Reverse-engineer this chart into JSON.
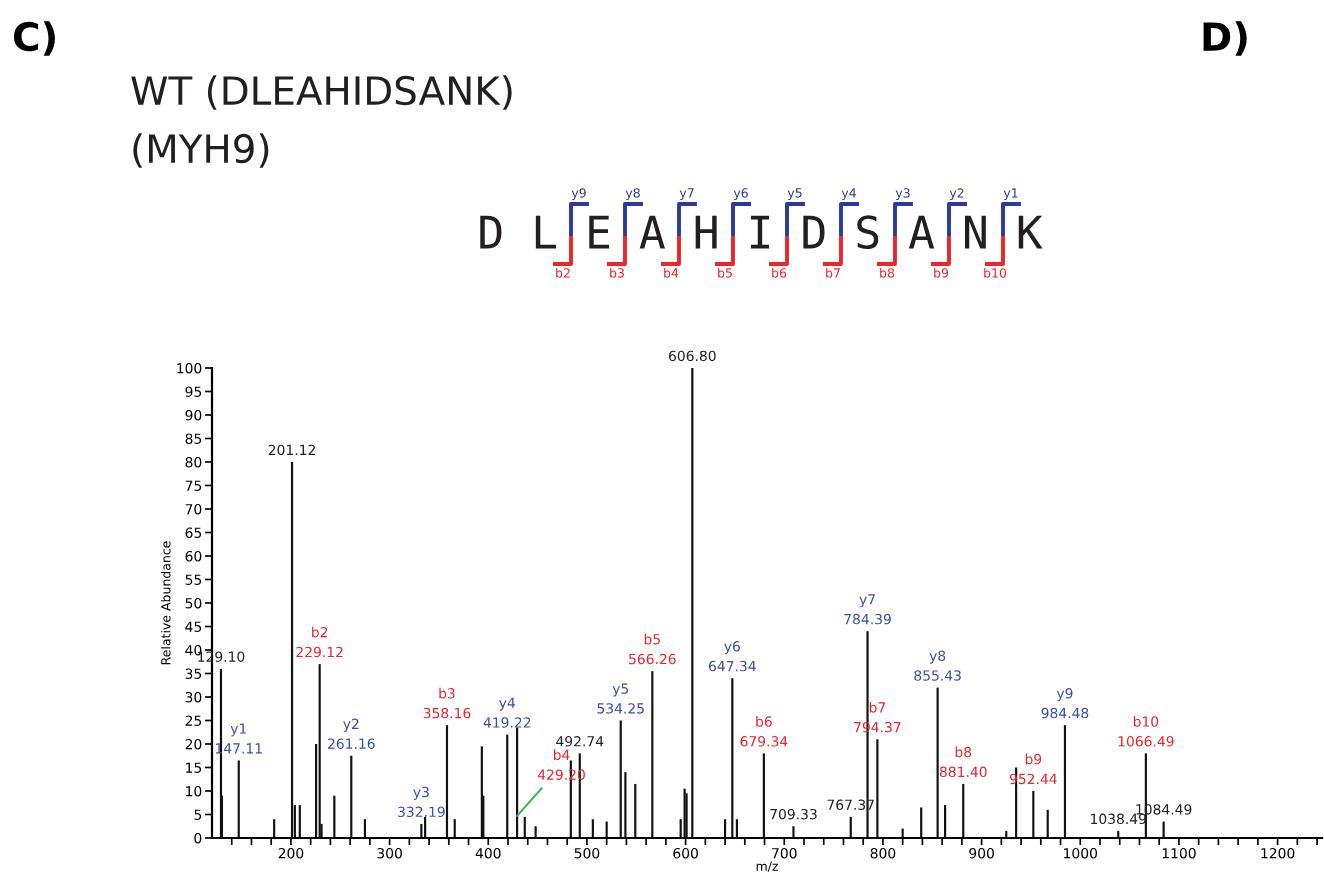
{
  "chart_data": {
    "type": "bar",
    "title": "WT (DLEAHIDSANK)",
    "subtitle": "(MYH9)",
    "xlabel": "m/z",
    "ylabel": "Relative Abundance",
    "x": [
      129.1,
      130.1,
      147.11,
      183,
      201.12,
      204,
      209,
      225.5,
      229.12,
      231,
      244,
      261.16,
      275,
      332.19,
      336,
      358.16,
      366,
      393.5,
      395,
      419.22,
      429.2,
      437,
      448,
      483.7,
      492.74,
      506,
      520,
      534.25,
      539,
      549,
      566.26,
      595,
      599,
      601,
      606.8,
      640,
      647.34,
      652,
      679.34,
      709.33,
      767.37,
      784.39,
      794.37,
      820,
      838.8,
      855.43,
      863,
      881.4,
      925,
      935,
      952.44,
      967,
      984.48,
      1038.49,
      1066.49,
      1084.49
    ],
    "series": [
      {
        "color": "#111111",
        "values": [
          36,
          9,
          16.5,
          4,
          80,
          7,
          7,
          20,
          37,
          3,
          9,
          17.5,
          4,
          3,
          4.5,
          24,
          4,
          19.5,
          9,
          22,
          23.5,
          4.5,
          2.5,
          16.5,
          18,
          4,
          3.5,
          25,
          14,
          11.5,
          35.5,
          4,
          10.5,
          9.5,
          100,
          4,
          34,
          4,
          18,
          2.5,
          4.5,
          44,
          21,
          2,
          6.5,
          32,
          7,
          11.5,
          1.5,
          15,
          10,
          6,
          24,
          1.5,
          18,
          3.5
        ]
      }
    ],
    "xlim": [
      120,
      1245
    ],
    "ylim": [
      0,
      100
    ],
    "xticks": [
      {
        "value": 140,
        "label": null
      },
      {
        "value": 160,
        "label": null
      },
      {
        "value": 180,
        "label": null
      },
      200,
      {
        "value": 220,
        "label": null
      },
      {
        "value": 240,
        "label": null
      },
      {
        "value": 260,
        "label": null
      },
      {
        "value": 280,
        "label": null
      },
      300,
      {
        "value": 320,
        "label": null
      },
      {
        "value": 340,
        "label": null
      },
      {
        "value": 360,
        "label": null
      },
      {
        "value": 380,
        "label": null
      },
      400,
      {
        "value": 420,
        "label": null
      },
      {
        "value": 440,
        "label": null
      },
      {
        "value": 460,
        "label": null
      },
      {
        "value": 480,
        "label": null
      },
      500,
      {
        "value": 520,
        "label": null
      },
      {
        "value": 540,
        "label": null
      },
      {
        "value": 560,
        "label": null
      },
      {
        "value": 580,
        "label": null
      },
      600,
      {
        "value": 620,
        "label": null
      },
      {
        "value": 640,
        "label": null
      },
      {
        "value": 660,
        "label": null
      },
      {
        "value": 680,
        "label": null
      },
      700,
      {
        "value": 720,
        "label": null
      },
      {
        "value": 740,
        "label": null
      },
      {
        "value": 760,
        "label": null
      },
      {
        "value": 780,
        "label": null
      },
      800,
      {
        "value": 820,
        "label": null
      },
      {
        "value": 840,
        "label": null
      },
      {
        "value": 860,
        "label": null
      },
      {
        "value": 880,
        "label": null
      },
      900,
      {
        "value": 920,
        "label": null
      },
      {
        "value": 940,
        "label": null
      },
      {
        "value": 960,
        "label": null
      },
      {
        "value": 980,
        "label": null
      },
      1000,
      {
        "value": 1020,
        "label": null
      },
      {
        "value": 1040,
        "label": null
      },
      {
        "value": 1060,
        "label": null
      },
      {
        "value": 1080,
        "label": null
      },
      1100,
      {
        "value": 1120,
        "label": null
      },
      {
        "value": 1140,
        "label": null
      },
      {
        "value": 1160,
        "label": null
      },
      {
        "value": 1180,
        "label": null
      },
      1200,
      {
        "value": 1220,
        "label": null
      },
      {
        "value": 1240,
        "label": null
      }
    ],
    "yticks": [
      0,
      5,
      10,
      15,
      20,
      25,
      30,
      35,
      40,
      45,
      50,
      55,
      60,
      65,
      70,
      75,
      80,
      85,
      90,
      95,
      100
    ],
    "grid": false,
    "legend": false,
    "annotations": [
      "C)",
      "D)",
      "D L E A H I D S A N K",
      "y9",
      "y8",
      "y7",
      "y6",
      "y5",
      "y4",
      "y3",
      "y2",
      "y1",
      "b2",
      "b3",
      "b4",
      "b5",
      "b6",
      "b7",
      "b8",
      "b9",
      "b10",
      {
        "text": "129.10",
        "x": 129.1,
        "y": 36
      },
      {
        "text": "y1\n147.11",
        "x": 147.11,
        "y": 16.5
      },
      {
        "text": "201.12",
        "x": 201.12,
        "y": 80
      },
      {
        "text": "b2\n229.12",
        "x": 229.12,
        "y": 37
      },
      {
        "text": "y2\n261.16",
        "x": 261.16,
        "y": 17.5
      },
      {
        "text": "y3\n332.19",
        "x": 332.19,
        "y": 3
      },
      {
        "text": "b3\n358.16",
        "x": 358.16,
        "y": 24
      },
      {
        "text": "y4\n419.22",
        "x": 419.22,
        "y": 22
      },
      {
        "text": "b4\n429.20",
        "x": 429.2,
        "y": 23.5
      },
      {
        "text": "492.74",
        "x": 492.74,
        "y": 18
      },
      {
        "text": "y5\n534.25",
        "x": 534.25,
        "y": 25
      },
      {
        "text": "b5\n566.26",
        "x": 566.26,
        "y": 35.5
      },
      {
        "text": "606.80",
        "x": 606.8,
        "y": 100
      },
      {
        "text": "y6\n647.34",
        "x": 647.34,
        "y": 34
      },
      {
        "text": "b6\n679.34",
        "x": 679.34,
        "y": 18
      },
      {
        "text": "709.33",
        "x": 709.33,
        "y": 2.5
      },
      {
        "text": "767.37",
        "x": 767.37,
        "y": 4.5
      },
      {
        "text": "y7\n784.39",
        "x": 784.39,
        "y": 44
      },
      {
        "text": "b7\n794.37",
        "x": 794.37,
        "y": 21
      },
      {
        "text": "y8\n855.43",
        "x": 855.43,
        "y": 32
      },
      {
        "text": "b8\n881.40",
        "x": 881.4,
        "y": 11.5
      },
      {
        "text": "b9\n952.44",
        "x": 952.44,
        "y": 10
      },
      {
        "text": "y9\n984.48",
        "x": 984.48,
        "y": 24
      },
      {
        "text": "1038.49",
        "x": 1038.49,
        "y": 1.5
      },
      {
        "text": "b10\n1066.49",
        "x": 1066.49,
        "y": 18
      },
      {
        "text": "1084.49",
        "x": 1084.49,
        "y": 3.5
      }
    ]
  }
}
